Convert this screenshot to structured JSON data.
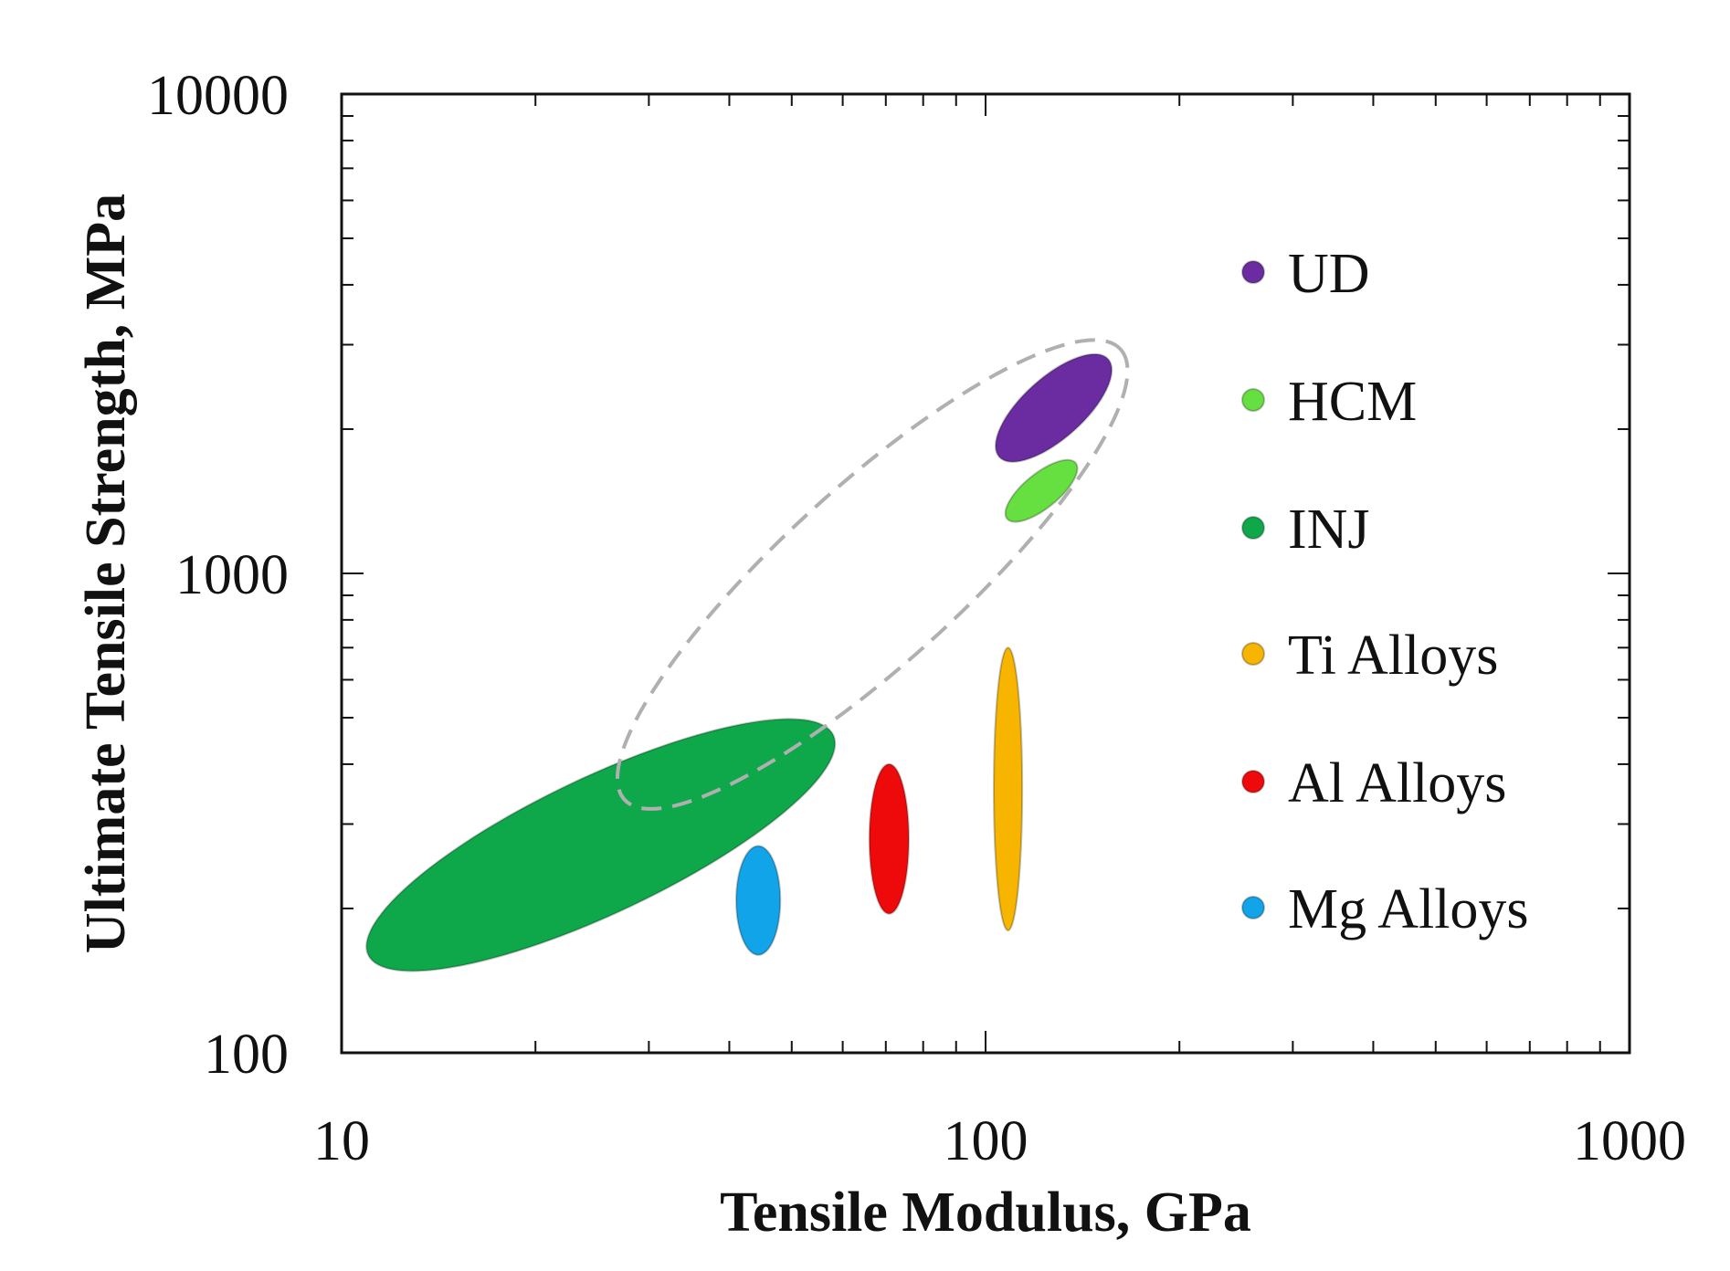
{
  "chart_data": {
    "type": "scatter",
    "subtype": "log-log property region map (Ashby-style ellipses)",
    "xlabel": "Tensile Modulus, GPa",
    "ylabel": "Ultimate Tensile Strength, MPa",
    "xscale": "log",
    "yscale": "log",
    "xlim": [
      10,
      1000
    ],
    "ylim": [
      100,
      10000
    ],
    "x_tick_labels": [
      "10",
      "100",
      "1000"
    ],
    "y_tick_labels": [
      "100",
      "1000",
      "10000"
    ],
    "x_major_ticks": [
      10,
      100,
      1000
    ],
    "y_major_ticks": [
      100,
      1000,
      10000
    ],
    "grid": false,
    "legend_position": "right",
    "series": [
      {
        "name": "UD",
        "color": "#6a2ca0",
        "x_range": [
          105,
          155
        ],
        "y_range": [
          1750,
          2800
        ],
        "tilt": "positive"
      },
      {
        "name": "HCM",
        "color": "#66e040",
        "x_range": [
          108,
          138
        ],
        "y_range": [
          1300,
          1700
        ],
        "tilt": "positive"
      },
      {
        "name": "INJ",
        "color": "#0ea84a",
        "x_range": [
          11,
          58
        ],
        "y_range": [
          160,
          460
        ],
        "tilt": "positive"
      },
      {
        "name": "Ti Alloys",
        "color": "#f7b500",
        "x_range": [
          103,
          114
        ],
        "y_range": [
          180,
          700
        ],
        "tilt": "none"
      },
      {
        "name": "Al Alloys",
        "color": "#ee0a0a",
        "x_range": [
          66,
          76
        ],
        "y_range": [
          195,
          400
        ],
        "tilt": "none"
      },
      {
        "name": "Mg Alloys",
        "color": "#12a4e8",
        "x_range": [
          41,
          48
        ],
        "y_range": [
          160,
          270
        ],
        "tilt": "none"
      }
    ],
    "annotations": [
      {
        "type": "dashed-envelope",
        "label": "",
        "color": "#b0b0b0",
        "x_range": [
          27,
          165
        ],
        "y_range": [
          330,
          3000
        ],
        "encloses": [
          "UD",
          "HCM",
          "INJ"
        ]
      }
    ]
  }
}
